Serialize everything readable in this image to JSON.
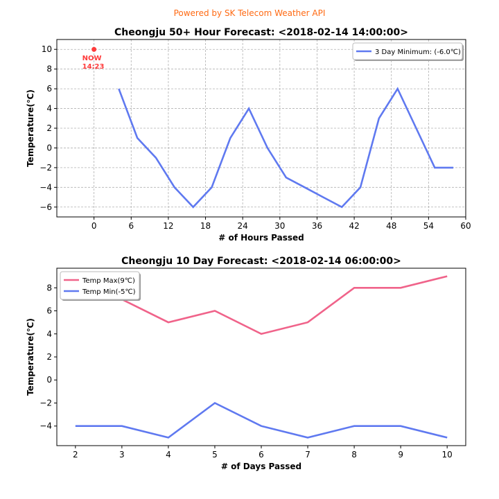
{
  "credit": "Powered by SK Telecom Weather API",
  "chart_data": [
    {
      "type": "line",
      "title": "Cheongju 50+ Hour Forecast: <2018-02-14 14:00:00>",
      "xlabel": "# of Hours Passed",
      "ylabel": "Temperature(℃)",
      "xlim": [
        -6,
        60
      ],
      "ylim": [
        -7,
        11
      ],
      "xticks": [
        0,
        6,
        12,
        18,
        24,
        30,
        36,
        42,
        48,
        54,
        60
      ],
      "yticks": [
        -6,
        -4,
        -2,
        0,
        2,
        4,
        6,
        8,
        10
      ],
      "grid": true,
      "legend_position": "top-right",
      "series": [
        {
          "name": "3 Day Minimum: (-6.0℃)",
          "color": "#5f79f0",
          "x": [
            4,
            7,
            10,
            13,
            16,
            19,
            22,
            25,
            28,
            31,
            34,
            37,
            40,
            43,
            46,
            49,
            52,
            55,
            58
          ],
          "y": [
            6,
            1,
            -1,
            -4,
            -6,
            -4,
            1,
            4,
            0,
            -3,
            -4,
            -5,
            -6,
            -4,
            3,
            6,
            2,
            -2,
            -2
          ]
        }
      ],
      "annotation": {
        "x": 0,
        "y": 10,
        "color": "#ff3b3b",
        "line1": "NOW",
        "line2": "14:23"
      }
    },
    {
      "type": "line",
      "title": "Cheongju 10 Day Forecast: <2018-02-14 06:00:00>",
      "xlabel": "# of Days Passed",
      "ylabel": "Temperature(℃)",
      "xlim": [
        1.6,
        10.4
      ],
      "ylim": [
        -5.7,
        9.7
      ],
      "xticks": [
        2,
        3,
        4,
        5,
        6,
        7,
        8,
        9,
        10
      ],
      "yticks": [
        -4,
        -2,
        0,
        2,
        4,
        6,
        8
      ],
      "grid": false,
      "legend_position": "top-left",
      "series": [
        {
          "name": "Temp Max(9℃)",
          "color": "#f0638a",
          "x": [
            2,
            3,
            4,
            5,
            6,
            7,
            8,
            9,
            10
          ],
          "y": [
            7,
            7,
            5,
            6,
            4,
            5,
            8,
            8,
            9
          ]
        },
        {
          "name": "Temp Min(-5℃)",
          "color": "#5f79f0",
          "x": [
            2,
            3,
            4,
            5,
            6,
            7,
            8,
            9,
            10
          ],
          "y": [
            -4,
            -4,
            -5,
            -2,
            -4,
            -5,
            -4,
            -4,
            -5
          ]
        }
      ]
    }
  ]
}
